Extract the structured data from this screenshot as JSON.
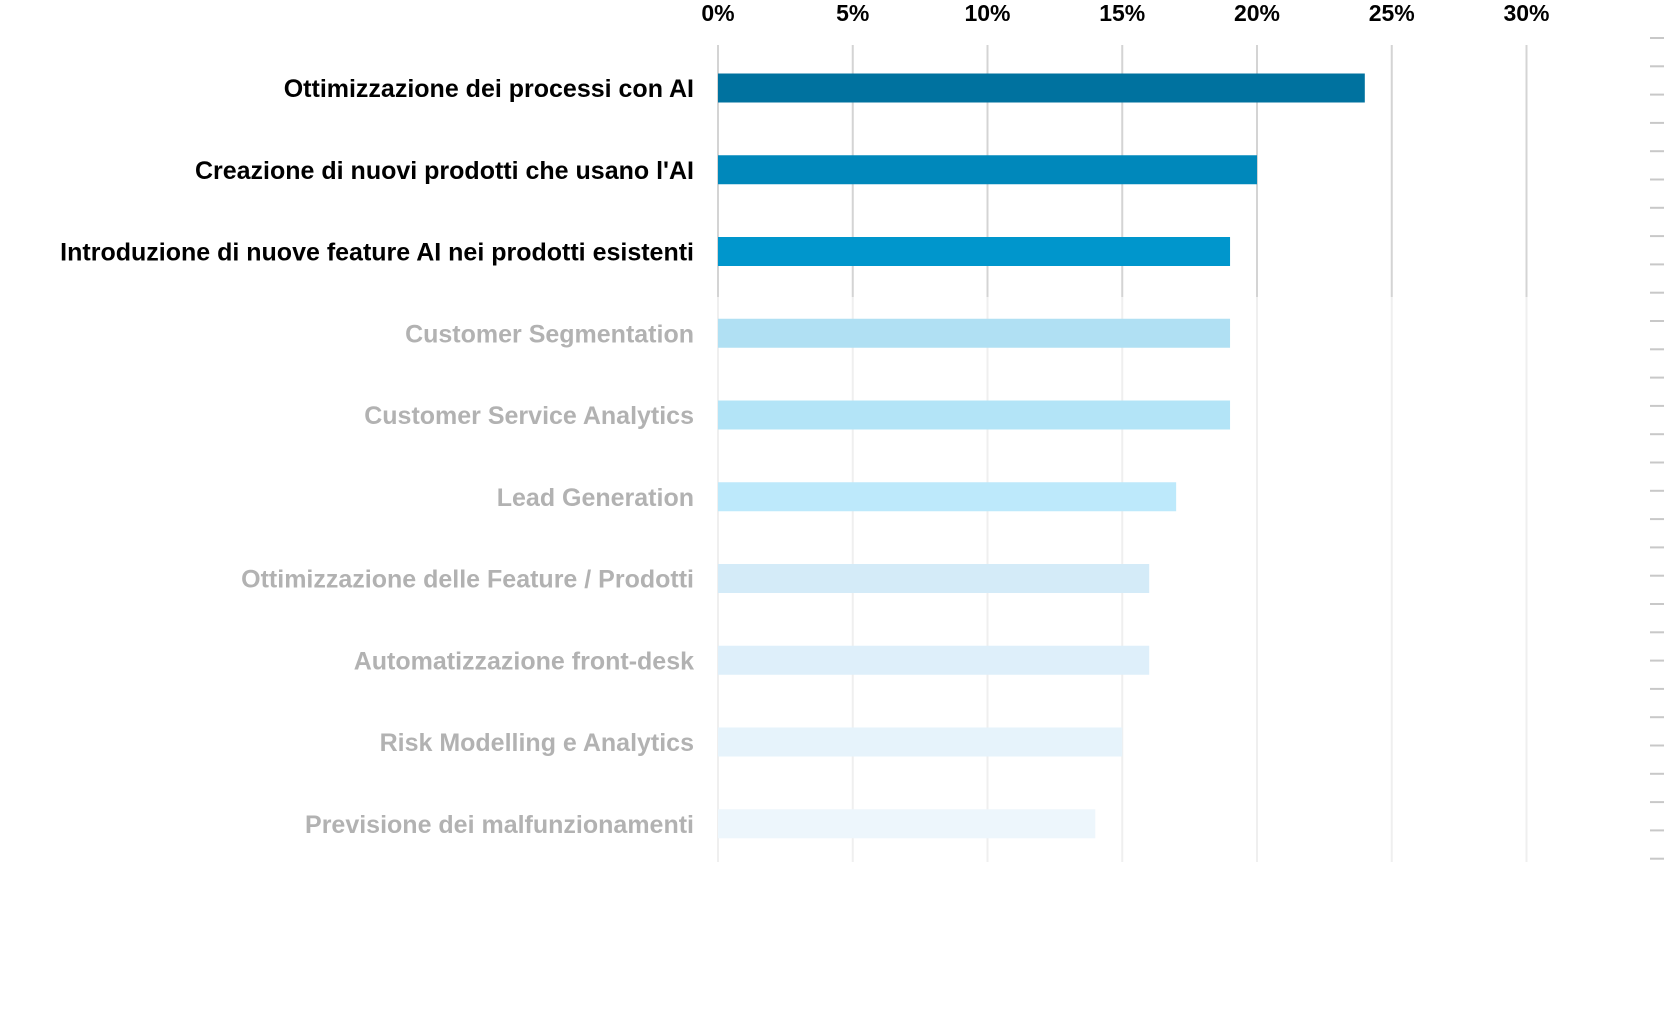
{
  "chart_data": {
    "type": "bar",
    "orientation": "horizontal",
    "title": "",
    "xlabel": "",
    "ylabel": "",
    "xlim": [
      0,
      30
    ],
    "ticks": [
      0,
      5,
      10,
      15,
      20,
      25,
      30
    ],
    "tick_labels": [
      "0%",
      "5%",
      "10%",
      "15%",
      "20%",
      "25%",
      "30%"
    ],
    "axis_position": "top",
    "grid": true,
    "highlighted_count": 3,
    "categories": [
      "Ottimizzazione dei processi con AI",
      "Creazione di nuovi prodotti che usano l'AI",
      "Introduzione di nuove feature AI nei prodotti esistenti",
      "Customer Segmentation",
      "Customer Service Analytics",
      "Lead Generation",
      "Ottimizzazione delle Feature / Prodotti",
      "Automatizzazione front-desk",
      "Risk Modelling e Analytics",
      "Previsione dei malfunzionamenti"
    ],
    "values": [
      24,
      20,
      19,
      19,
      19,
      17,
      16,
      16,
      15,
      14
    ],
    "colors": [
      "#00729f",
      "#0088bb",
      "#0096cc",
      "#b0e0f3",
      "#b3e4f7",
      "#bde9fb",
      "#d4ebf8",
      "#deeffa",
      "#e6f3fb",
      "#edf6fc"
    ],
    "label_colors": [
      "#000000",
      "#000000",
      "#000000",
      "#b2b2b2",
      "#b2b2b2",
      "#b2b2b2",
      "#b2b2b2",
      "#b2b2b2",
      "#b2b2b2",
      "#b2b2b2"
    ]
  }
}
